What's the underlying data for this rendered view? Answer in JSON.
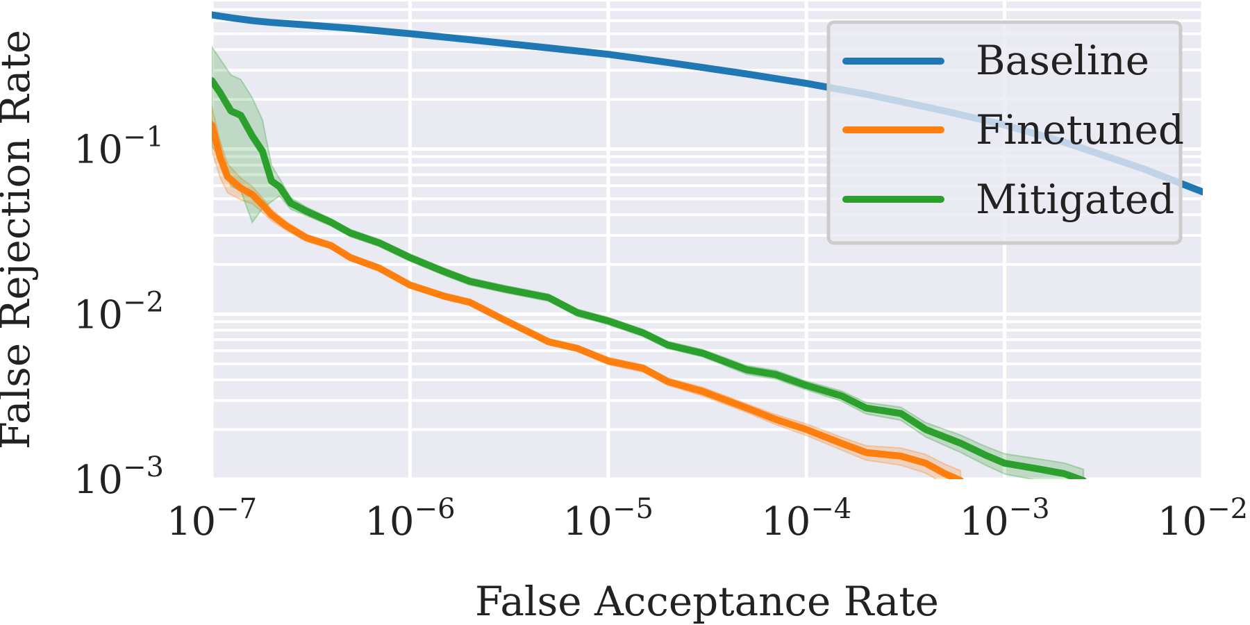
{
  "chart_data": {
    "type": "line",
    "xscale": "log",
    "yscale": "log",
    "xlabel": "False Acceptance Rate",
    "ylabel": "False Rejection Rate",
    "xlim": [
      1e-07,
      0.01
    ],
    "ylim": [
      0.001,
      0.8
    ],
    "grid": true,
    "legend_position": "top-right",
    "x_ticks": [
      {
        "value": 1e-07,
        "base": "10",
        "exp": "−7"
      },
      {
        "value": 1e-06,
        "base": "10",
        "exp": "−6"
      },
      {
        "value": 1e-05,
        "base": "10",
        "exp": "−5"
      },
      {
        "value": 0.0001,
        "base": "10",
        "exp": "−4"
      },
      {
        "value": 0.001,
        "base": "10",
        "exp": "−3"
      },
      {
        "value": 0.01,
        "base": "10",
        "exp": "−2"
      }
    ],
    "y_ticks": [
      {
        "value": 0.1,
        "base": "10",
        "exp": "−1"
      },
      {
        "value": 0.01,
        "base": "10",
        "exp": "−2"
      },
      {
        "value": 0.001,
        "base": "10",
        "exp": "−3"
      }
    ],
    "series": [
      {
        "name": "Baseline",
        "color": "#1f77b4",
        "x": [
          1e-07,
          1.3e-07,
          1.6e-07,
          2e-07,
          3e-07,
          5e-07,
          1e-06,
          2e-06,
          5e-06,
          1e-05,
          2e-05,
          5e-05,
          0.0001,
          0.0002,
          0.0005,
          0.001,
          0.002,
          0.005,
          0.01
        ],
        "values": [
          0.65,
          0.62,
          0.6,
          0.585,
          0.565,
          0.54,
          0.5,
          0.46,
          0.41,
          0.375,
          0.335,
          0.285,
          0.25,
          0.215,
          0.17,
          0.14,
          0.11,
          0.076,
          0.055
        ],
        "band": [
          0.02,
          0.02,
          0.02,
          0.02,
          0.02,
          0.02,
          0.02,
          0.02,
          0.02,
          0.02,
          0.02,
          0.02,
          0.02,
          0.02,
          0.02,
          0.02,
          0.02,
          0.02,
          0.02
        ]
      },
      {
        "name": "Finetuned",
        "color": "#ff7f0e",
        "x": [
          1e-07,
          1.1e-07,
          1.2e-07,
          1.4e-07,
          1.6e-07,
          1.8e-07,
          2e-07,
          2.4e-07,
          3e-07,
          4e-07,
          5e-07,
          7e-07,
          1e-06,
          1.5e-06,
          2e-06,
          3e-06,
          5e-06,
          7e-06,
          1e-05,
          1.5e-05,
          2e-05,
          3e-05,
          5e-05,
          7e-05,
          0.0001,
          0.00015,
          0.0002,
          0.0003,
          0.0004,
          0.0005,
          0.0006
        ],
        "values": [
          0.14,
          0.09,
          0.068,
          0.058,
          0.053,
          0.046,
          0.04,
          0.034,
          0.029,
          0.026,
          0.022,
          0.019,
          0.015,
          0.0128,
          0.0118,
          0.0092,
          0.0068,
          0.0062,
          0.0052,
          0.0047,
          0.0039,
          0.0034,
          0.0027,
          0.0023,
          0.002,
          0.00165,
          0.00145,
          0.00138,
          0.00125,
          0.00108,
          0.00098
        ],
        "band": [
          0.3,
          0.25,
          0.2,
          0.15,
          0.12,
          0.1,
          0.08,
          0.06,
          0.05,
          0.04,
          0.04,
          0.04,
          0.04,
          0.04,
          0.04,
          0.04,
          0.04,
          0.04,
          0.05,
          0.05,
          0.05,
          0.06,
          0.06,
          0.07,
          0.08,
          0.09,
          0.1,
          0.12,
          0.13,
          0.14,
          0.15
        ]
      },
      {
        "name": "Mitigated",
        "color": "#2ca02c",
        "x": [
          1e-07,
          1.1e-07,
          1.25e-07,
          1.4e-07,
          1.6e-07,
          1.8e-07,
          2e-07,
          2.2e-07,
          2.5e-07,
          3e-07,
          4e-07,
          5e-07,
          7e-07,
          1e-06,
          1.5e-06,
          2e-06,
          3e-06,
          5e-06,
          7e-06,
          1e-05,
          1.5e-05,
          2e-05,
          3e-05,
          5e-05,
          7e-05,
          0.0001,
          0.00015,
          0.0002,
          0.0003,
          0.0004,
          0.0006,
          0.0008,
          0.001,
          0.0015,
          0.002,
          0.0025
        ],
        "values": [
          0.26,
          0.22,
          0.17,
          0.16,
          0.12,
          0.097,
          0.064,
          0.059,
          0.047,
          0.042,
          0.036,
          0.031,
          0.027,
          0.022,
          0.018,
          0.0158,
          0.0142,
          0.0126,
          0.0102,
          0.0091,
          0.0077,
          0.0065,
          0.0058,
          0.0046,
          0.0043,
          0.0037,
          0.0032,
          0.0027,
          0.0025,
          0.002,
          0.00165,
          0.0014,
          0.00125,
          0.00115,
          0.00108,
          0.00098
        ],
        "band": [
          0.6,
          0.6,
          0.65,
          0.65,
          0.7,
          0.55,
          0.25,
          0.12,
          0.08,
          0.06,
          0.05,
          0.05,
          0.05,
          0.05,
          0.05,
          0.05,
          0.05,
          0.05,
          0.05,
          0.05,
          0.05,
          0.05,
          0.05,
          0.06,
          0.06,
          0.06,
          0.07,
          0.08,
          0.09,
          0.1,
          0.12,
          0.13,
          0.14,
          0.15,
          0.16,
          0.17
        ]
      }
    ]
  }
}
